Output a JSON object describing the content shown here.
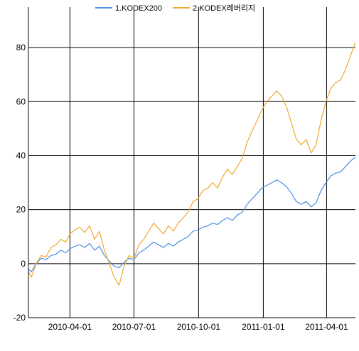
{
  "chart_data": {
    "type": "line",
    "title": "",
    "xlabel": "",
    "ylabel": "",
    "x_ticks": [
      "2010-04-01",
      "2010-07-01",
      "2010-10-01",
      "2011-01-01",
      "2011-04-01"
    ],
    "y_ticks": [
      -20,
      0,
      20,
      40,
      60,
      80
    ],
    "ylim": [
      -20,
      95
    ],
    "xlim": [
      "2010-02-01",
      "2011-05-12"
    ],
    "grid": true,
    "legend_position": "top-center",
    "series": [
      {
        "name": "1.KODEX200",
        "color": "#4a8fe0",
        "points": [
          [
            "2010-02-01",
            -2
          ],
          [
            "2010-02-05",
            -3
          ],
          [
            "2010-02-12",
            0
          ],
          [
            "2010-02-19",
            2
          ],
          [
            "2010-02-26",
            1.5
          ],
          [
            "2010-03-05",
            3
          ],
          [
            "2010-03-12",
            3.5
          ],
          [
            "2010-03-19",
            5
          ],
          [
            "2010-03-26",
            4
          ],
          [
            "2010-04-01",
            5.5
          ],
          [
            "2010-04-08",
            6.5
          ],
          [
            "2010-04-15",
            7
          ],
          [
            "2010-04-22",
            6
          ],
          [
            "2010-04-29",
            7.5
          ],
          [
            "2010-05-06",
            5
          ],
          [
            "2010-05-13",
            6.5
          ],
          [
            "2010-05-20",
            3
          ],
          [
            "2010-05-27",
            1
          ],
          [
            "2010-06-03",
            -1
          ],
          [
            "2010-06-10",
            -1.5
          ],
          [
            "2010-06-17",
            0.5
          ],
          [
            "2010-06-24",
            2
          ],
          [
            "2010-07-01",
            1.5
          ],
          [
            "2010-07-08",
            4
          ],
          [
            "2010-07-15",
            5
          ],
          [
            "2010-07-22",
            6.5
          ],
          [
            "2010-07-29",
            8
          ],
          [
            "2010-08-05",
            7
          ],
          [
            "2010-08-12",
            6
          ],
          [
            "2010-08-19",
            7.5
          ],
          [
            "2010-08-26",
            6.5
          ],
          [
            "2010-09-02",
            8
          ],
          [
            "2010-09-09",
            9
          ],
          [
            "2010-09-16",
            10
          ],
          [
            "2010-09-23",
            12
          ],
          [
            "2010-09-30",
            12.5
          ],
          [
            "2010-10-07",
            13.5
          ],
          [
            "2010-10-14",
            14
          ],
          [
            "2010-10-21",
            15
          ],
          [
            "2010-10-28",
            14.5
          ],
          [
            "2010-11-04",
            16
          ],
          [
            "2010-11-11",
            17
          ],
          [
            "2010-11-18",
            16
          ],
          [
            "2010-11-25",
            18
          ],
          [
            "2010-12-02",
            19
          ],
          [
            "2010-12-09",
            22
          ],
          [
            "2010-12-16",
            24
          ],
          [
            "2010-12-23",
            26
          ],
          [
            "2010-12-30",
            28
          ],
          [
            "2011-01-06",
            29
          ],
          [
            "2011-01-13",
            30
          ],
          [
            "2011-01-20",
            31
          ],
          [
            "2011-01-27",
            30
          ],
          [
            "2011-02-03",
            28.5
          ],
          [
            "2011-02-10",
            26
          ],
          [
            "2011-02-17",
            23
          ],
          [
            "2011-02-24",
            22
          ],
          [
            "2011-03-03",
            23
          ],
          [
            "2011-03-10",
            21
          ],
          [
            "2011-03-17",
            22.5
          ],
          [
            "2011-03-24",
            27
          ],
          [
            "2011-03-31",
            30
          ],
          [
            "2011-04-07",
            32.5
          ],
          [
            "2011-04-14",
            33.5
          ],
          [
            "2011-04-21",
            34
          ],
          [
            "2011-04-28",
            36
          ],
          [
            "2011-05-05",
            38
          ],
          [
            "2011-05-12",
            39.5
          ]
        ]
      },
      {
        "name": "2.KODEX레버리지",
        "color": "#f0a830",
        "points": [
          [
            "2010-02-01",
            -3
          ],
          [
            "2010-02-05",
            -5
          ],
          [
            "2010-02-12",
            0
          ],
          [
            "2010-02-19",
            3
          ],
          [
            "2010-02-26",
            2.5
          ],
          [
            "2010-03-05",
            6
          ],
          [
            "2010-03-12",
            7
          ],
          [
            "2010-03-19",
            9
          ],
          [
            "2010-03-26",
            8
          ],
          [
            "2010-04-01",
            11
          ],
          [
            "2010-04-08",
            12.5
          ],
          [
            "2010-04-15",
            13.5
          ],
          [
            "2010-04-22",
            11.5
          ],
          [
            "2010-04-29",
            14
          ],
          [
            "2010-05-06",
            9
          ],
          [
            "2010-05-13",
            12
          ],
          [
            "2010-05-20",
            5
          ],
          [
            "2010-05-27",
            0
          ],
          [
            "2010-06-03",
            -5
          ],
          [
            "2010-06-10",
            -8
          ],
          [
            "2010-06-17",
            -1
          ],
          [
            "2010-06-24",
            3
          ],
          [
            "2010-07-01",
            2
          ],
          [
            "2010-07-08",
            7
          ],
          [
            "2010-07-15",
            9
          ],
          [
            "2010-07-22",
            12
          ],
          [
            "2010-07-29",
            15
          ],
          [
            "2010-08-05",
            13
          ],
          [
            "2010-08-12",
            11
          ],
          [
            "2010-08-19",
            14
          ],
          [
            "2010-08-26",
            12
          ],
          [
            "2010-09-02",
            15
          ],
          [
            "2010-09-09",
            17
          ],
          [
            "2010-09-16",
            19
          ],
          [
            "2010-09-23",
            23
          ],
          [
            "2010-09-30",
            24
          ],
          [
            "2010-10-07",
            27
          ],
          [
            "2010-10-14",
            28
          ],
          [
            "2010-10-21",
            30
          ],
          [
            "2010-10-28",
            28
          ],
          [
            "2010-11-04",
            32
          ],
          [
            "2010-11-11",
            35
          ],
          [
            "2010-11-18",
            33
          ],
          [
            "2010-11-25",
            36
          ],
          [
            "2010-12-02",
            39
          ],
          [
            "2010-12-09",
            45
          ],
          [
            "2010-12-16",
            49
          ],
          [
            "2010-12-23",
            53
          ],
          [
            "2010-12-30",
            57
          ],
          [
            "2011-01-06",
            60
          ],
          [
            "2011-01-13",
            62
          ],
          [
            "2011-01-20",
            64
          ],
          [
            "2011-01-27",
            62
          ],
          [
            "2011-02-03",
            58
          ],
          [
            "2011-02-10",
            52
          ],
          [
            "2011-02-17",
            46
          ],
          [
            "2011-02-24",
            44
          ],
          [
            "2011-03-03",
            46
          ],
          [
            "2011-03-10",
            41
          ],
          [
            "2011-03-17",
            44
          ],
          [
            "2011-03-24",
            53
          ],
          [
            "2011-03-31",
            60
          ],
          [
            "2011-04-07",
            65
          ],
          [
            "2011-04-14",
            67
          ],
          [
            "2011-04-21",
            68
          ],
          [
            "2011-04-28",
            72
          ],
          [
            "2011-05-05",
            77
          ],
          [
            "2011-05-12",
            82
          ]
        ]
      }
    ]
  }
}
